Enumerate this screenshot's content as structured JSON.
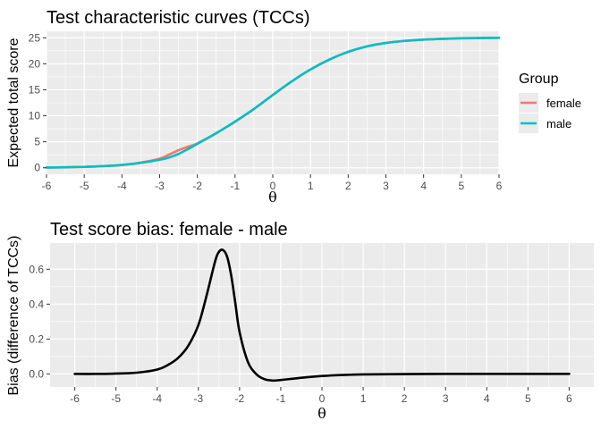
{
  "chart_data": [
    {
      "type": "line",
      "title": "Test characteristic curves (TCCs)",
      "xlabel": "θ",
      "ylabel": "Expected total score",
      "xlim": [
        -6,
        6
      ],
      "ylim": [
        -1.25,
        26.25
      ],
      "xticks": [
        -6,
        -5,
        -4,
        -3,
        -2,
        -1,
        0,
        1,
        2,
        3,
        4,
        5,
        6
      ],
      "yticks": [
        0,
        5,
        10,
        15,
        20,
        25
      ],
      "grid": true,
      "legend": {
        "title": "Group",
        "placement": "right"
      },
      "x": [
        -6,
        -5.5,
        -5,
        -4.5,
        -4,
        -3.5,
        -3,
        -2.75,
        -2.5,
        -2.25,
        -2,
        -1.5,
        -1,
        -0.5,
        0,
        0.5,
        1,
        1.5,
        2,
        2.5,
        3,
        3.5,
        4,
        4.5,
        5,
        5.5,
        6
      ],
      "series": [
        {
          "name": "female",
          "color": "#F8766D",
          "values": [
            0.05,
            0.1,
            0.17,
            0.3,
            0.55,
            1.0,
            1.75,
            2.55,
            3.37,
            4.05,
            4.68,
            6.65,
            8.85,
            11.3,
            14.0,
            16.6,
            18.9,
            20.8,
            22.3,
            23.35,
            24.0,
            24.4,
            24.65,
            24.8,
            24.9,
            24.95,
            25.0
          ]
        },
        {
          "name": "male",
          "color": "#00BFC4",
          "values": [
            0.05,
            0.1,
            0.17,
            0.3,
            0.54,
            0.94,
            1.54,
            1.98,
            2.66,
            3.59,
            4.6,
            6.64,
            8.89,
            11.31,
            14.0,
            16.6,
            18.9,
            20.8,
            22.3,
            23.35,
            24.0,
            24.4,
            24.65,
            24.8,
            24.9,
            24.95,
            25.0
          ]
        }
      ]
    },
    {
      "type": "line",
      "title": "Test score bias: female - male",
      "xlabel": "θ",
      "ylabel": "Bias (difference of TCCs)",
      "xlim": [
        -6.6,
        6.6
      ],
      "ylim": [
        -0.075,
        0.75
      ],
      "xticks": [
        -6,
        -5,
        -4,
        -3,
        -2,
        -1,
        0,
        1,
        2,
        3,
        4,
        5,
        6
      ],
      "yticks": [
        0.0,
        0.2,
        0.4,
        0.6
      ],
      "ytick_labels": [
        "0.0",
        "0.2",
        "0.4",
        "0.6"
      ],
      "grid": true,
      "x": [
        -6,
        -5.5,
        -5,
        -4.5,
        -4,
        -3.75,
        -3.5,
        -3.25,
        -3,
        -2.8,
        -2.6,
        -2.5,
        -2.4,
        -2.3,
        -2.2,
        -2.1,
        -2.0,
        -1.8,
        -1.6,
        -1.4,
        -1.2,
        -1.0,
        -0.5,
        0,
        0.5,
        1,
        2,
        3,
        4,
        5,
        6
      ],
      "series": [
        {
          "color": "#000000",
          "values": [
            0.0,
            0.0,
            0.002,
            0.007,
            0.025,
            0.05,
            0.09,
            0.16,
            0.28,
            0.45,
            0.64,
            0.7,
            0.71,
            0.67,
            0.56,
            0.4,
            0.24,
            0.07,
            0.0,
            -0.03,
            -0.038,
            -0.035,
            -0.022,
            -0.012,
            -0.006,
            -0.003,
            -0.001,
            0.0,
            0.0,
            0.0,
            0.0
          ]
        }
      ]
    }
  ]
}
